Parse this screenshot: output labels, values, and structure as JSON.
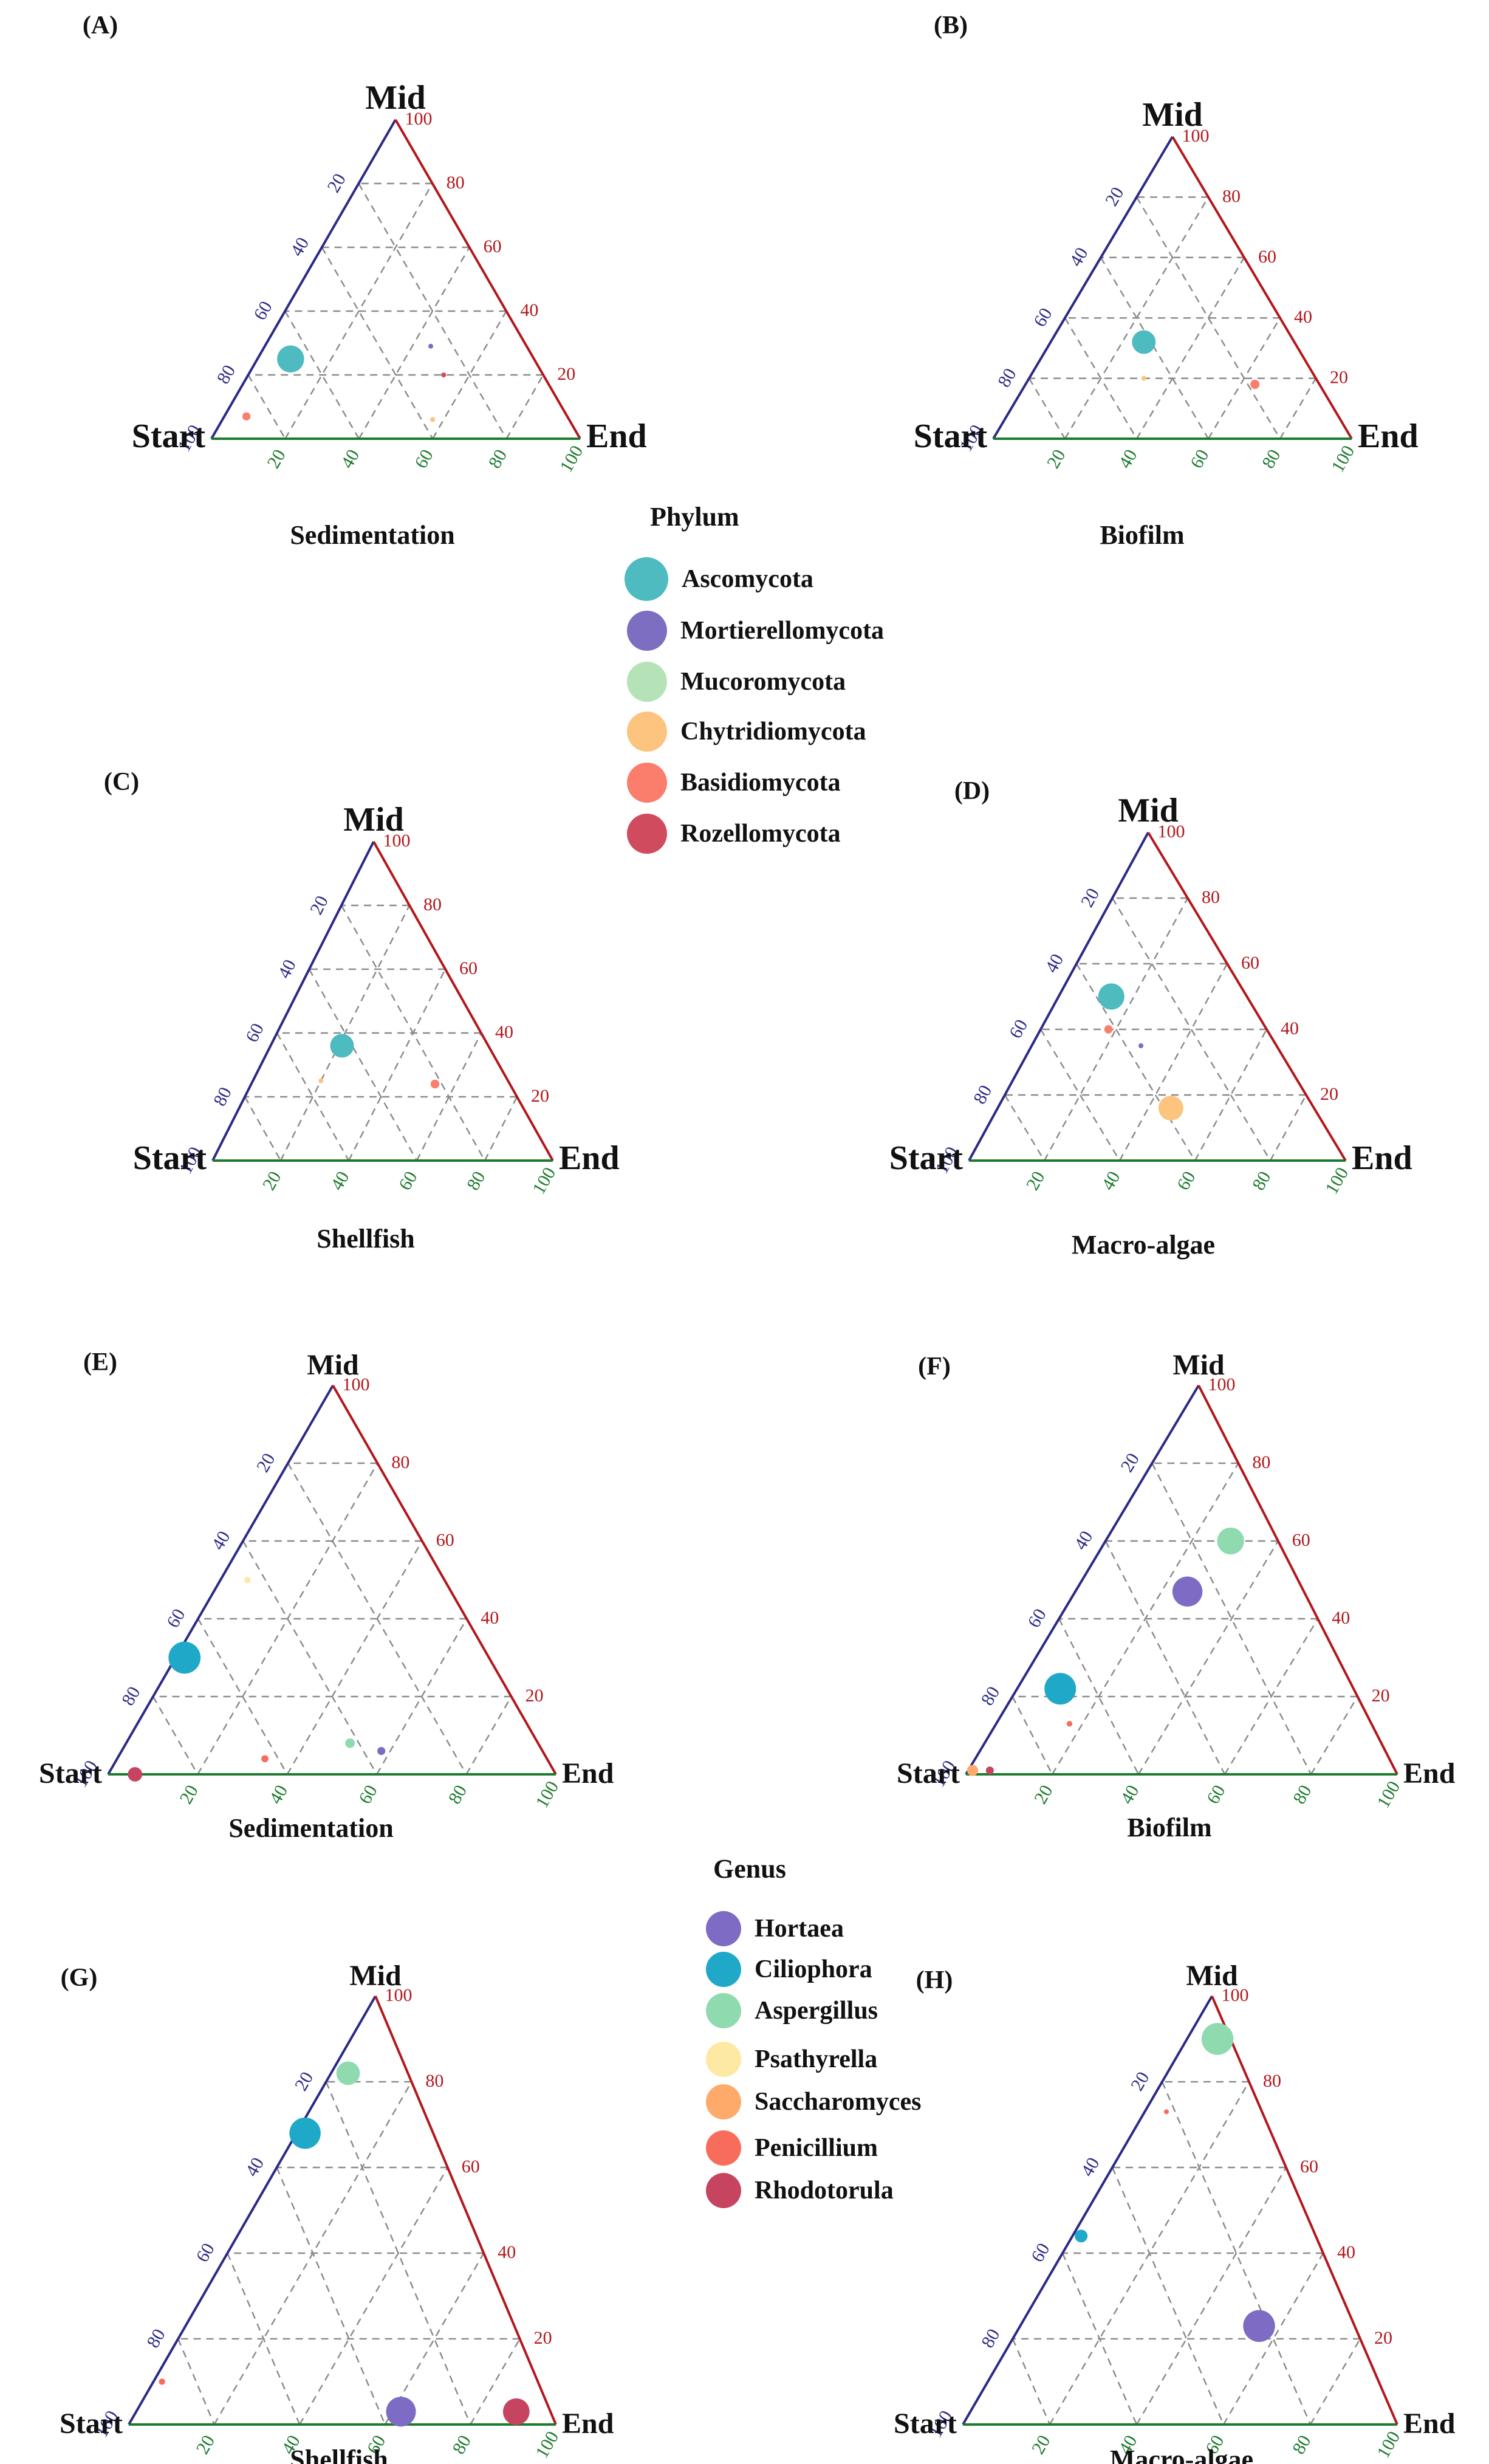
{
  "legends": {
    "phylum": {
      "title": "Phylum",
      "items": [
        {
          "label": "Ascomycota",
          "color": "#4DBBBF"
        },
        {
          "label": "Mortierellomycota",
          "color": "#7E6EC1"
        },
        {
          "label": "Mucoromycota",
          "color": "#B5E2B6"
        },
        {
          "label": "Chytridiomycota",
          "color": "#FDC47F"
        },
        {
          "label": "Basidiomycota",
          "color": "#FB7E6C"
        },
        {
          "label": "Rozellomycota",
          "color": "#D14B5E"
        }
      ]
    },
    "genus": {
      "title": "Genus",
      "items": [
        {
          "label": "Hortaea",
          "color": "#7E6BC4"
        },
        {
          "label": "Ciliophora",
          "color": "#20A8C8"
        },
        {
          "label": "Aspergillus",
          "color": "#8FDAAE"
        },
        {
          "label": "Psathyrella",
          "color": "#FDE8A4"
        },
        {
          "label": "Saccharomyces",
          "color": "#FDAA6A"
        },
        {
          "label": "Penicillium",
          "color": "#F86C5B"
        },
        {
          "label": "Rhodotorula",
          "color": "#C64460"
        }
      ]
    }
  },
  "chart_data": [
    {
      "type": "scatter",
      "panel_label": "(A)",
      "title": "Sedimentation",
      "axes": {
        "left": "Start",
        "top": "Mid",
        "right": "End"
      },
      "ticks": [
        "20",
        "40",
        "60",
        "80",
        "100"
      ],
      "legend_group": "phylum",
      "points": [
        {
          "name": "Ascomycota",
          "start": 66,
          "mid": 25,
          "end": 9,
          "size": 1.0
        },
        {
          "name": "Mortierellomycota",
          "start": 26,
          "mid": 29,
          "end": 45,
          "size": 0.18
        },
        {
          "name": "Basidiomycota",
          "start": 87,
          "mid": 7,
          "end": 6,
          "size": 0.3
        },
        {
          "name": "Chytridiomycota",
          "start": 37,
          "mid": 6,
          "end": 57,
          "size": 0.18
        },
        {
          "name": "Rozellomycota",
          "start": 27,
          "mid": 20,
          "end": 53,
          "size": 0.18
        }
      ]
    },
    {
      "type": "scatter",
      "panel_label": "(B)",
      "title": "Biofilm",
      "axes": {
        "left": "Start",
        "top": "Mid",
        "right": "End"
      },
      "ticks": [
        "20",
        "40",
        "60",
        "80",
        "100"
      ],
      "legend_group": "phylum",
      "points": [
        {
          "name": "Ascomycota",
          "start": 42,
          "mid": 32,
          "end": 26,
          "size": 0.9
        },
        {
          "name": "Basidiomycota",
          "start": 18,
          "mid": 18,
          "end": 64,
          "size": 0.35
        },
        {
          "name": "Chytridiomycota",
          "start": 48,
          "mid": 20,
          "end": 32,
          "size": 0.18
        }
      ]
    },
    {
      "type": "scatter",
      "panel_label": "(C)",
      "title": "Shellfish",
      "axes": {
        "left": "Start",
        "top": "Mid",
        "right": "End"
      },
      "ticks": [
        "20",
        "40",
        "60",
        "80",
        "100"
      ],
      "legend_group": "phylum",
      "points": [
        {
          "name": "Ascomycota",
          "start": 43,
          "mid": 36,
          "end": 21,
          "size": 0.95
        },
        {
          "name": "Basidiomycota",
          "start": 22,
          "mid": 24,
          "end": 54,
          "size": 0.35
        },
        {
          "name": "Chytridiomycota",
          "start": 55,
          "mid": 25,
          "end": 20,
          "size": 0.18
        }
      ]
    },
    {
      "type": "scatter",
      "panel_label": "(D)",
      "title": "Macro-algae",
      "axes": {
        "left": "Start",
        "top": "Mid",
        "right": "End"
      },
      "ticks": [
        "20",
        "40",
        "60",
        "80",
        "100"
      ],
      "legend_group": "phylum",
      "points": [
        {
          "name": "Ascomycota",
          "start": 36,
          "mid": 50,
          "end": 14,
          "size": 0.95
        },
        {
          "name": "Basidiomycota",
          "start": 42,
          "mid": 40,
          "end": 18,
          "size": 0.3
        },
        {
          "name": "Mortierellomycota",
          "start": 36,
          "mid": 35,
          "end": 29,
          "size": 0.18
        },
        {
          "name": "Chytridiomycota",
          "start": 38,
          "mid": 16,
          "end": 46,
          "size": 0.9
        }
      ]
    },
    {
      "type": "scatter",
      "panel_label": "(E)",
      "title": "Sedimentation",
      "axes": {
        "left": "Start",
        "top": "Mid",
        "right": "End"
      },
      "ticks": [
        "20",
        "40",
        "60",
        "80",
        "100"
      ],
      "legend_group": "genus",
      "points": [
        {
          "name": "Psathyrella",
          "start": 44,
          "mid": 50,
          "end": 6,
          "size": 0.2
        },
        {
          "name": "Ciliophora",
          "start": 68,
          "mid": 30,
          "end": 2,
          "size": 1.0
        },
        {
          "name": "Aspergillus",
          "start": 42,
          "mid": 8,
          "end": 50,
          "size": 0.3
        },
        {
          "name": "Hortaea",
          "start": 36,
          "mid": 6,
          "end": 58,
          "size": 0.25
        },
        {
          "name": "Penicillium",
          "start": 63,
          "mid": 4,
          "end": 33,
          "size": 0.22
        },
        {
          "name": "Rhodotorula",
          "start": 94,
          "mid": 0,
          "end": 6,
          "size": 0.45
        }
      ]
    },
    {
      "type": "scatter",
      "panel_label": "(F)",
      "title": "Biofilm",
      "axes": {
        "left": "Start",
        "top": "Mid",
        "right": "End"
      },
      "ticks": [
        "20",
        "40",
        "60",
        "80",
        "100"
      ],
      "legend_group": "genus",
      "points": [
        {
          "name": "Aspergillus",
          "start": 11,
          "mid": 60,
          "end": 29,
          "size": 0.85
        },
        {
          "name": "Hortaea",
          "start": 27,
          "mid": 47,
          "end": 26,
          "size": 0.95
        },
        {
          "name": "Ciliophora",
          "start": 68,
          "mid": 22,
          "end": 10,
          "size": 1.0
        },
        {
          "name": "Penicillium",
          "start": 70,
          "mid": 13,
          "end": 17,
          "size": 0.18
        },
        {
          "name": "Saccharomyces",
          "start": 98,
          "mid": 1,
          "end": 1,
          "size": 0.35
        },
        {
          "name": "Rhodotorula",
          "start": 94,
          "mid": 1,
          "end": 5,
          "size": 0.25
        }
      ]
    },
    {
      "type": "scatter",
      "panel_label": "(G)",
      "title": "Shellfish",
      "axes": {
        "left": "Start",
        "top": "Mid",
        "right": "End"
      },
      "ticks": [
        "20",
        "40",
        "60",
        "80",
        "100"
      ],
      "legend_group": "genus",
      "points": [
        {
          "name": "Aspergillus",
          "start": 14,
          "mid": 82,
          "end": 4,
          "size": 0.75
        },
        {
          "name": "Ciliophora",
          "start": 30,
          "mid": 68,
          "end": 2,
          "size": 1.0
        },
        {
          "name": "Hortaea",
          "start": 35,
          "mid": 3,
          "end": 62,
          "size": 0.95
        },
        {
          "name": "Rhodotorula",
          "start": 8,
          "mid": 3,
          "end": 89,
          "size": 0.85
        },
        {
          "name": "Penicillium",
          "start": 88,
          "mid": 10,
          "end": 2,
          "size": 0.2
        }
      ]
    },
    {
      "type": "scatter",
      "panel_label": "(H)",
      "title": "Macro-algae",
      "axes": {
        "left": "Start",
        "top": "Mid",
        "right": "End"
      },
      "ticks": [
        "20",
        "40",
        "60",
        "80",
        "100"
      ],
      "legend_group": "genus",
      "points": [
        {
          "name": "Aspergillus",
          "start": 3,
          "mid": 90,
          "end": 7,
          "size": 1.0
        },
        {
          "name": "Ciliophora",
          "start": 54,
          "mid": 44,
          "end": 2,
          "size": 0.4
        },
        {
          "name": "Penicillium",
          "start": 22,
          "mid": 73,
          "end": 5,
          "size": 0.15
        },
        {
          "name": "Hortaea",
          "start": 22,
          "mid": 23,
          "end": 55,
          "size": 1.0
        }
      ]
    }
  ]
}
